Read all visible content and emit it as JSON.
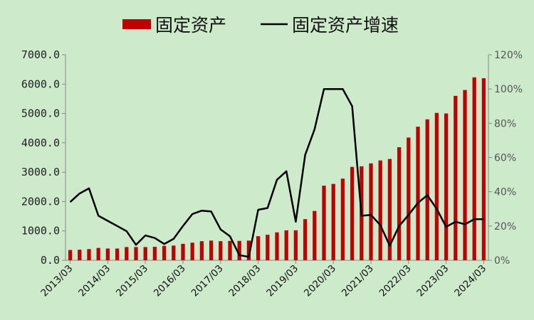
{
  "chart_data": {
    "type": "bar+line",
    "title": "",
    "legend": {
      "placement": "top",
      "items": [
        {
          "label": "固定资产",
          "kind": "bar",
          "color": "#c00000"
        },
        {
          "label": "固定资产增速",
          "kind": "line",
          "color": "#000000"
        }
      ]
    },
    "x_tick_labels": [
      "2013/03",
      "2014/03",
      "2015/03",
      "2016/03",
      "2017/03",
      "2018/03",
      "2019/03",
      "2020/03",
      "2021/03",
      "2022/03",
      "2023/03",
      "2024/03"
    ],
    "y_left": {
      "min": 0,
      "max": 7000,
      "step": 1000,
      "tick_labels": [
        "0.0",
        "1000.0",
        "2000.0",
        "3000.0",
        "4000.0",
        "5000.0",
        "6000.0",
        "7000.0"
      ]
    },
    "y_right": {
      "min": 0,
      "max": 1.2,
      "step": 0.2,
      "tick_labels": [
        "0%",
        "20%",
        "40%",
        "60%",
        "80%",
        "100%",
        "120%"
      ]
    },
    "grid": false,
    "periods": [
      "2013/03",
      "2013/06",
      "2013/09",
      "2013/12",
      "2014/03",
      "2014/06",
      "2014/09",
      "2014/12",
      "2015/03",
      "2015/06",
      "2015/09",
      "2015/12",
      "2016/03",
      "2016/06",
      "2016/09",
      "2016/12",
      "2017/03",
      "2017/06",
      "2017/09",
      "2017/12",
      "2018/03",
      "2018/06",
      "2018/09",
      "2018/12",
      "2019/03",
      "2019/06",
      "2019/09",
      "2019/12",
      "2020/03",
      "2020/06",
      "2020/09",
      "2020/12",
      "2021/03",
      "2021/06",
      "2021/09",
      "2021/12",
      "2022/03",
      "2022/06",
      "2022/09",
      "2022/12",
      "2023/03",
      "2023/06",
      "2023/09",
      "2023/12",
      "2024/03"
    ],
    "series": [
      {
        "name": "固定资产",
        "axis": "left",
        "type": "bar",
        "color": "#c00000",
        "values": [
          350,
          360,
          380,
          420,
          400,
          400,
          450,
          450,
          450,
          460,
          490,
          500,
          560,
          600,
          650,
          670,
          650,
          660,
          660,
          670,
          820,
          870,
          950,
          1020,
          1020,
          1400,
          1680,
          2540,
          2600,
          2780,
          3180,
          3200,
          3300,
          3400,
          3450,
          3850,
          4180,
          4550,
          4800,
          5020,
          5000,
          5600,
          5800,
          6230,
          6200
        ]
      },
      {
        "name": "固定资产增速",
        "axis": "right",
        "type": "line",
        "color": "#000000",
        "values": [
          0.34,
          0.39,
          0.42,
          0.26,
          0.23,
          0.2,
          0.17,
          0.09,
          0.145,
          0.13,
          0.095,
          0.125,
          0.2,
          0.27,
          0.29,
          0.285,
          0.18,
          0.14,
          0.03,
          0.02,
          0.295,
          0.305,
          0.47,
          0.52,
          0.225,
          0.615,
          0.765,
          1.0,
          1.0,
          1.0,
          0.9,
          0.26,
          0.265,
          0.205,
          0.085,
          0.2,
          0.265,
          0.335,
          0.38,
          0.3,
          0.195,
          0.225,
          0.21,
          0.24,
          0.24
        ]
      }
    ]
  }
}
